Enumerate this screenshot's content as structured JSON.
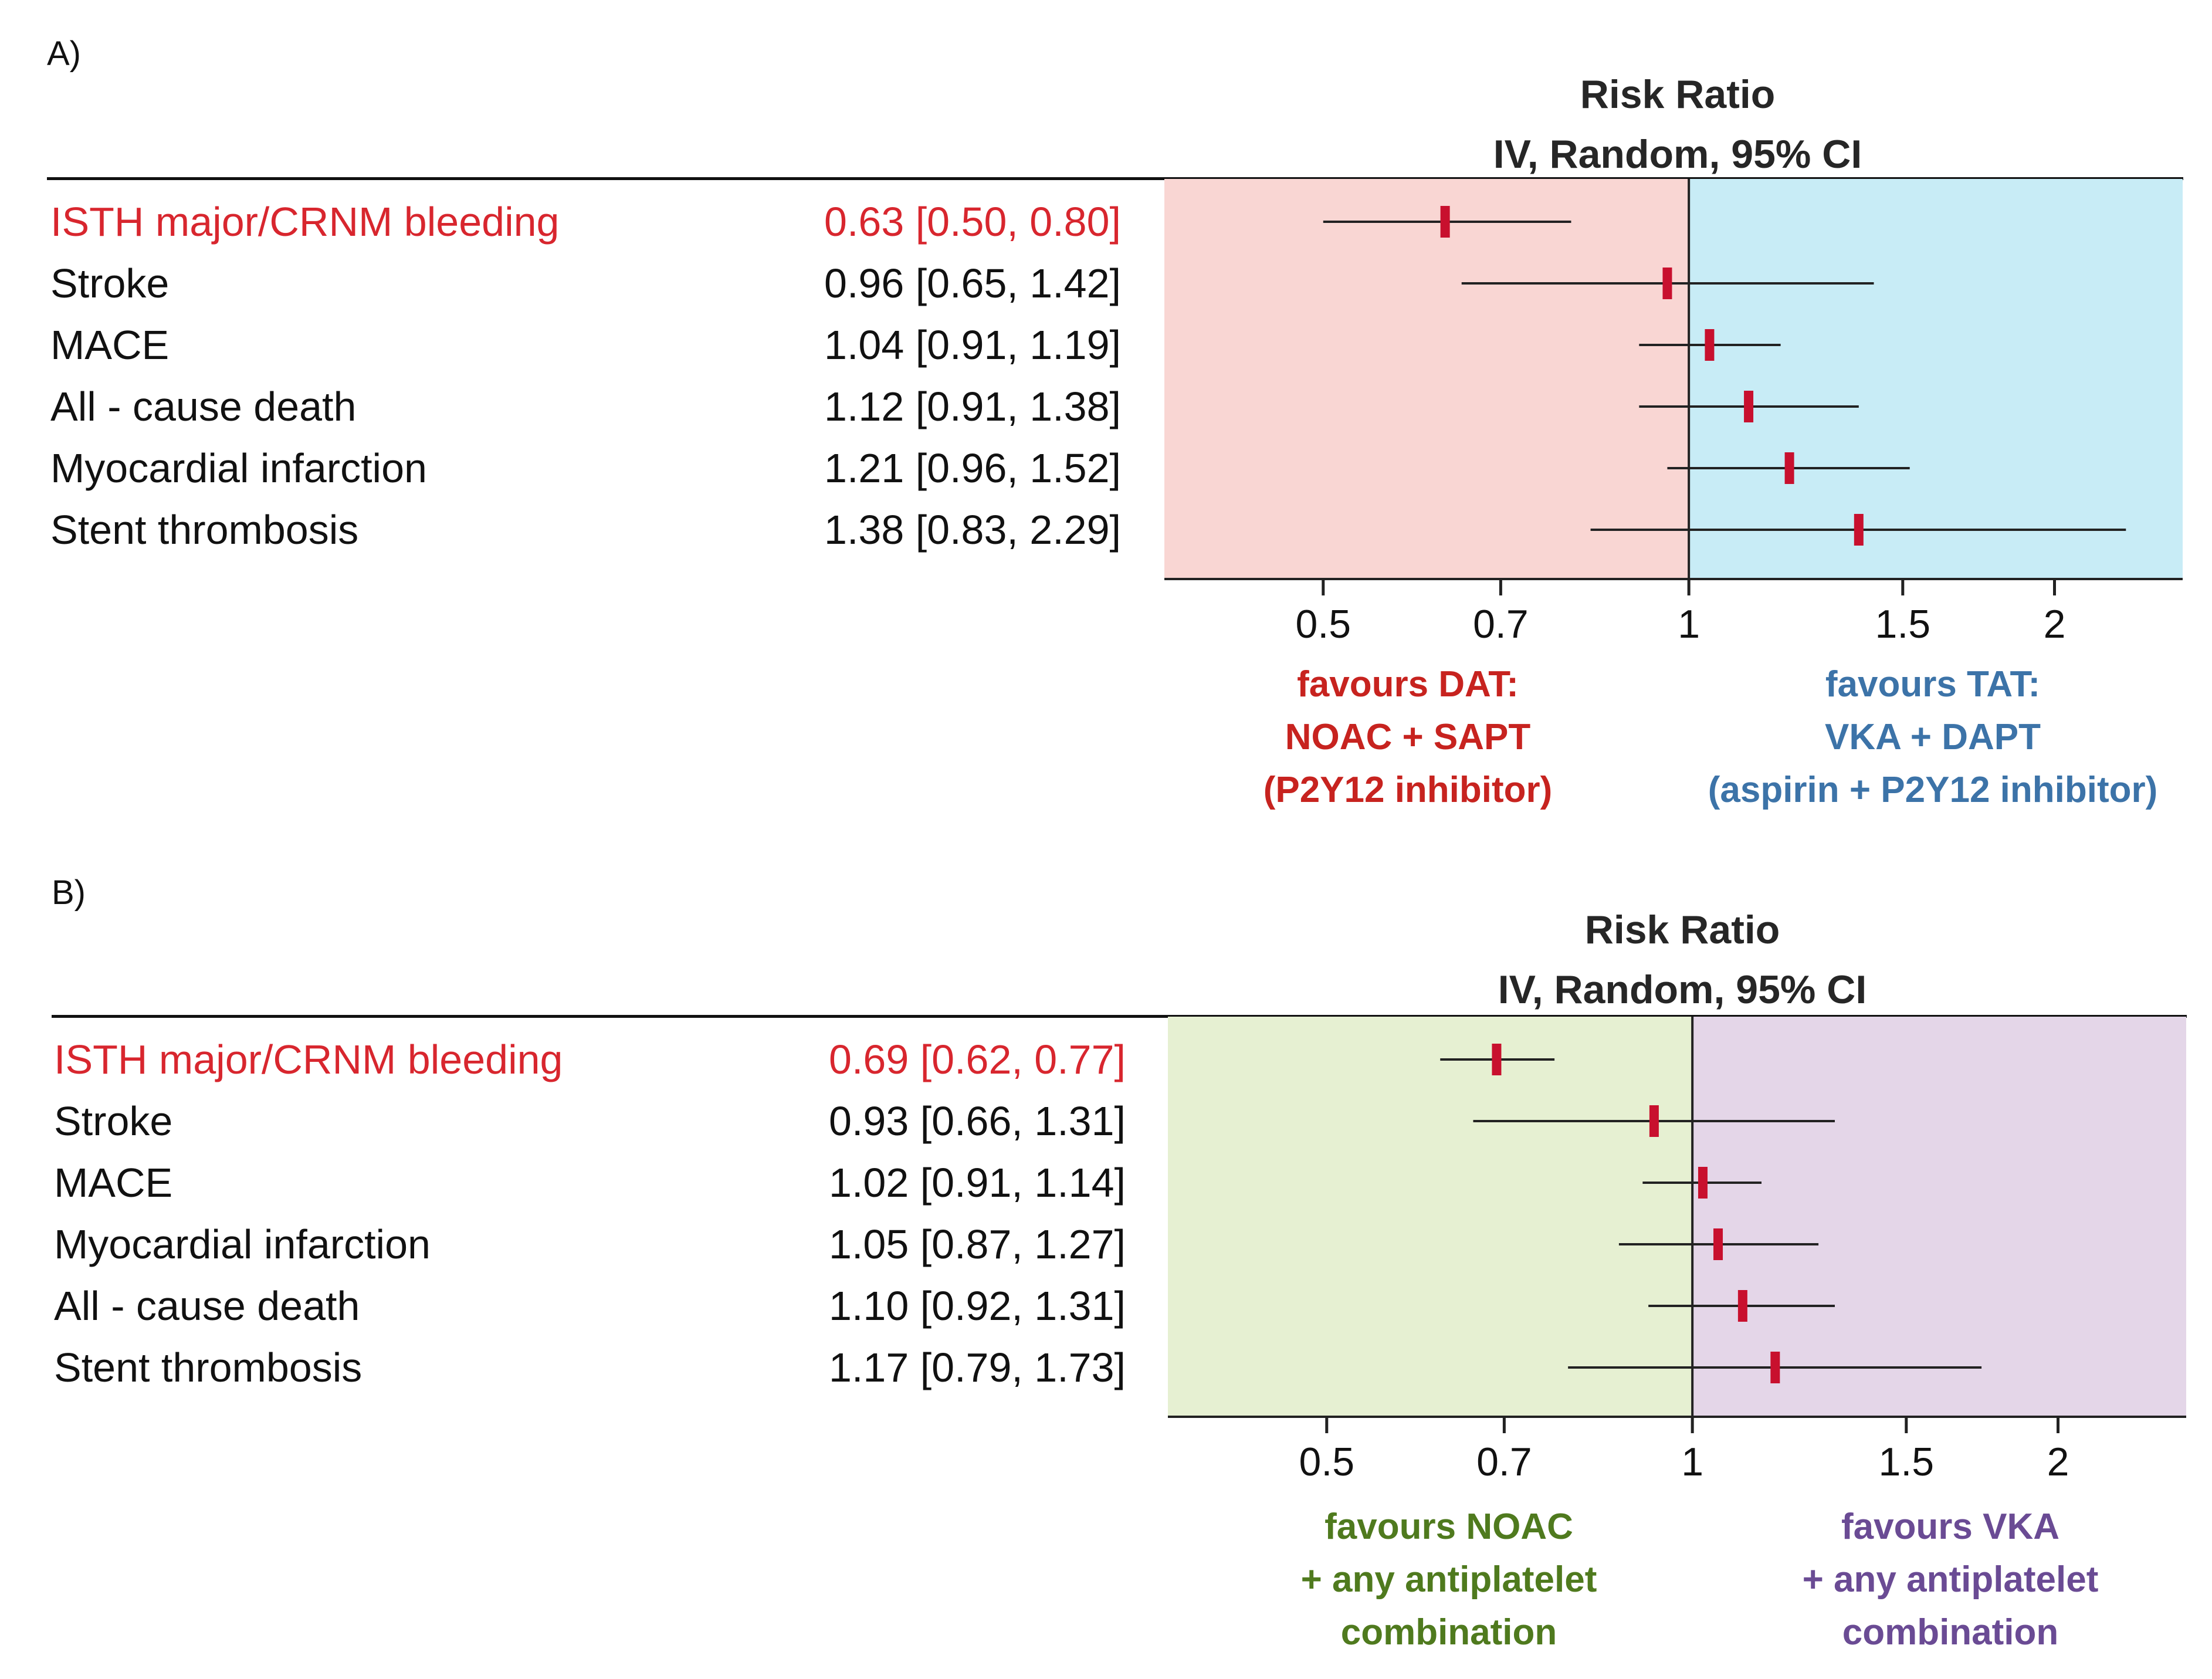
{
  "colors": {
    "highlight_text": "#d8262e",
    "point_marker": "#c8102e",
    "panelA_left_bg": "#f9d6d3",
    "panelA_right_bg": "#c8ecf6",
    "panelB_left_bg": "#e6f0d2",
    "panelB_right_bg": "#e4d6e8",
    "favour_dat": "#c7231f",
    "favour_tat": "#3c73a8",
    "favour_noac": "#4f7a1e",
    "favour_vka": "#6a4b94"
  },
  "panels": [
    {
      "label": "A)",
      "title_line1": "Risk Ratio",
      "title_line2": "IV, Random, 95% CI",
      "favour_left": [
        "favours DAT:",
        "NOAC + SAPT",
        "(P2Y12 inhibitor)"
      ],
      "favour_right": [
        "favours TAT:",
        "VKA + DAPT",
        "(aspirin + P2Y12 inhibitor)"
      ],
      "rows": [
        {
          "outcome": "ISTH major/CRNM bleeding",
          "effect_text": "0.63 [0.50, 0.80]",
          "highlight": true
        },
        {
          "outcome": "Stroke",
          "effect_text": "0.96 [0.65, 1.42]",
          "highlight": false
        },
        {
          "outcome": "MACE",
          "effect_text": "1.04 [0.91, 1.19]",
          "highlight": false
        },
        {
          "outcome": "All - cause death",
          "effect_text": "1.12 [0.91, 1.38]",
          "highlight": false
        },
        {
          "outcome": "Myocardial infarction",
          "effect_text": "1.21 [0.96, 1.52]",
          "highlight": false
        },
        {
          "outcome": "Stent thrombosis",
          "effect_text": "1.38 [0.83, 2.29]",
          "highlight": false
        }
      ]
    },
    {
      "label": "B)",
      "title_line1": "Risk Ratio",
      "title_line2": "IV, Random, 95% CI",
      "favour_left": [
        "favours NOAC",
        "+ any antiplatelet",
        "combination"
      ],
      "favour_right": [
        "favours VKA",
        "+ any antiplatelet",
        "combination"
      ],
      "rows": [
        {
          "outcome": "ISTH major/CRNM bleeding",
          "effect_text": "0.69 [0.62, 0.77]",
          "highlight": true
        },
        {
          "outcome": "Stroke",
          "effect_text": "0.93 [0.66, 1.31]",
          "highlight": false
        },
        {
          "outcome": "MACE",
          "effect_text": "1.02 [0.91, 1.14]",
          "highlight": false
        },
        {
          "outcome": "Myocardial infarction",
          "effect_text": "1.05 [0.87, 1.27]",
          "highlight": false
        },
        {
          "outcome": "All - cause death",
          "effect_text": "1.10 [0.92, 1.31]",
          "highlight": false
        },
        {
          "outcome": "Stent thrombosis",
          "effect_text": "1.17 [0.79, 1.73]",
          "highlight": false
        }
      ]
    }
  ],
  "chart_data": [
    {
      "type": "forest",
      "title": "Risk Ratio IV, Random, 95% CI",
      "scale": "log",
      "xlim": [
        0.37,
        2.55
      ],
      "reference_line": 1,
      "xticks": [
        "0.5",
        "0.7",
        "1",
        "1.5",
        "2"
      ],
      "xtick_values": [
        0.5,
        0.7,
        1,
        1.5,
        2
      ],
      "series": [
        {
          "name": "ISTH major/CRNM bleeding",
          "rr": 0.63,
          "lo": 0.5,
          "hi": 0.8
        },
        {
          "name": "Stroke",
          "rr": 0.96,
          "lo": 0.65,
          "hi": 1.42
        },
        {
          "name": "MACE",
          "rr": 1.04,
          "lo": 0.91,
          "hi": 1.19
        },
        {
          "name": "All - cause death",
          "rr": 1.12,
          "lo": 0.91,
          "hi": 1.38
        },
        {
          "name": "Myocardial infarction",
          "rr": 1.21,
          "lo": 0.96,
          "hi": 1.52
        },
        {
          "name": "Stent thrombosis",
          "rr": 1.38,
          "lo": 0.83,
          "hi": 2.29
        }
      ]
    },
    {
      "type": "forest",
      "title": "Risk Ratio IV, Random, 95% CI",
      "scale": "log",
      "xlim": [
        0.37,
        2.55
      ],
      "reference_line": 1,
      "xticks": [
        "0.5",
        "0.7",
        "1",
        "1.5",
        "2"
      ],
      "xtick_values": [
        0.5,
        0.7,
        1,
        1.5,
        2
      ],
      "series": [
        {
          "name": "ISTH major/CRNM bleeding",
          "rr": 0.69,
          "lo": 0.62,
          "hi": 0.77
        },
        {
          "name": "Stroke",
          "rr": 0.93,
          "lo": 0.66,
          "hi": 1.31
        },
        {
          "name": "MACE",
          "rr": 1.02,
          "lo": 0.91,
          "hi": 1.14
        },
        {
          "name": "Myocardial infarction",
          "rr": 1.05,
          "lo": 0.87,
          "hi": 1.27
        },
        {
          "name": "All - cause death",
          "rr": 1.1,
          "lo": 0.92,
          "hi": 1.31
        },
        {
          "name": "Stent thrombosis",
          "rr": 1.17,
          "lo": 0.79,
          "hi": 1.73
        }
      ]
    }
  ]
}
